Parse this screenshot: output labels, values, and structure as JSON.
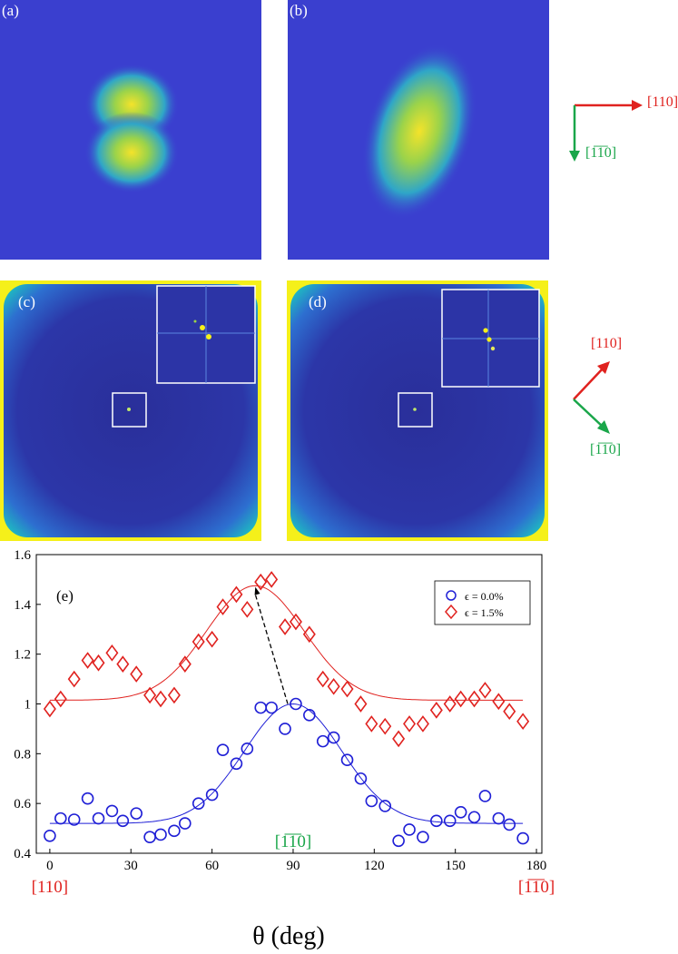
{
  "panels": {
    "a": {
      "label": "(a)"
    },
    "b": {
      "label": "(b)"
    },
    "c": {
      "label": "(c)"
    },
    "d": {
      "label": "(d)"
    }
  },
  "directions_top": {
    "x_label": "[110]",
    "y_label": "[1̅1̅0]"
  },
  "directions_mid": {
    "up_label": "[110]",
    "down_label": "[1̅1̅0]"
  },
  "colors": {
    "speckle_bg": "#3a3fcf",
    "fft_bg": "#2a2f9a",
    "fft_edge": "#f5f01a",
    "red": "#e0221f",
    "green": "#1aa64a",
    "blue": "#1f1fd6"
  },
  "chart_data": {
    "type": "scatter",
    "panel_label": "(e)",
    "xlabel": "θ (deg)",
    "xlim": [
      -5,
      182
    ],
    "ylim": [
      0.4,
      1.6
    ],
    "xticks": [
      0,
      30,
      60,
      90,
      120,
      150,
      180
    ],
    "yticks": [
      0.4,
      0.6,
      0.8,
      1,
      1.2,
      1.4,
      1.6
    ],
    "x_annotations": [
      {
        "x": 0,
        "text": "[110]",
        "color": "#e0221f"
      },
      {
        "x": 180,
        "text": "[1̅1̅0]",
        "color": "#e0221f"
      },
      {
        "x": 90,
        "text": "[1̅1̅0]",
        "color": "#1aa64a"
      }
    ],
    "series": [
      {
        "name": "ϵ = 0.0%",
        "color": "#1f1fd6",
        "marker": "circle",
        "x": [
          0,
          4,
          9,
          14,
          18,
          23,
          27,
          32,
          37,
          41,
          46,
          50,
          55,
          60,
          64,
          69,
          73,
          78,
          82,
          87,
          91,
          96,
          101,
          105,
          110,
          115,
          119,
          124,
          129,
          133,
          138,
          143,
          148,
          152,
          157,
          161,
          166,
          170,
          175
        ],
        "y": [
          0.47,
          0.54,
          0.535,
          0.62,
          0.54,
          0.57,
          0.53,
          0.56,
          0.465,
          0.475,
          0.49,
          0.52,
          0.6,
          0.635,
          0.815,
          0.76,
          0.82,
          0.985,
          0.985,
          0.9,
          1.0,
          0.955,
          0.85,
          0.865,
          0.775,
          0.7,
          0.61,
          0.59,
          0.45,
          0.495,
          0.465,
          0.53,
          0.53,
          0.565,
          0.545,
          0.63,
          0.54,
          0.515,
          0.46
        ]
      },
      {
        "name": "ϵ = 1.5%",
        "color": "#e0221f",
        "marker": "diamond",
        "x": [
          0,
          4,
          9,
          14,
          18,
          23,
          27,
          32,
          37,
          41,
          46,
          50,
          55,
          60,
          64,
          69,
          73,
          78,
          82,
          87,
          91,
          96,
          101,
          105,
          110,
          115,
          119,
          124,
          129,
          133,
          138,
          143,
          148,
          152,
          157,
          161,
          166,
          170,
          175
        ],
        "y": [
          0.98,
          1.02,
          1.1,
          1.175,
          1.165,
          1.205,
          1.16,
          1.12,
          1.035,
          1.02,
          1.035,
          1.16,
          1.25,
          1.26,
          1.39,
          1.44,
          1.38,
          1.49,
          1.5,
          1.31,
          1.33,
          1.28,
          1.1,
          1.07,
          1.06,
          1.0,
          0.92,
          0.91,
          0.86,
          0.92,
          0.92,
          0.975,
          1.0,
          1.02,
          1.02,
          1.055,
          1.01,
          0.97,
          0.93
        ]
      }
    ],
    "fits": [
      {
        "name": "ϵ = 0.0%",
        "color": "#1f1fd6",
        "baseline": 0.52,
        "amplitude": 0.48,
        "center": 90,
        "width": 18
      },
      {
        "name": "ϵ = 1.5%",
        "color": "#e0221f",
        "baseline": 1.015,
        "amplitude": 0.46,
        "center": 76,
        "width": 18
      }
    ],
    "arrow": {
      "from": [
        88,
        1.0
      ],
      "to": [
        76,
        1.47
      ]
    },
    "legend_position": "top-right"
  }
}
